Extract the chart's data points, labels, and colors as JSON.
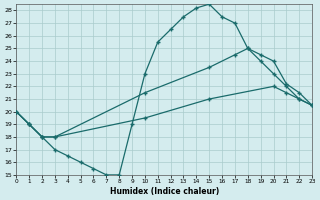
{
  "bg_color": "#d4ecee",
  "grid_color": "#aacccc",
  "line_color": "#1a6b6b",
  "xlim": [
    0,
    23
  ],
  "ylim": [
    15,
    28.5
  ],
  "xlabel": "Humidex (Indice chaleur)",
  "ytick_vals": [
    15,
    16,
    17,
    18,
    19,
    20,
    21,
    22,
    23,
    24,
    25,
    26,
    27,
    28
  ],
  "xtick_vals": [
    0,
    1,
    2,
    3,
    4,
    5,
    6,
    7,
    8,
    9,
    10,
    11,
    12,
    13,
    14,
    15,
    16,
    17,
    18,
    19,
    20,
    21,
    22,
    23
  ],
  "curve1_x": [
    0,
    1,
    2,
    3,
    4,
    5,
    6,
    7,
    8,
    9,
    10,
    11,
    12,
    13,
    14,
    15,
    16,
    17,
    18,
    19,
    20,
    21,
    22,
    23
  ],
  "curve1_y": [
    20.0,
    19.0,
    18.0,
    17.0,
    16.5,
    16.0,
    15.5,
    15.0,
    15.0,
    19.0,
    23.0,
    25.5,
    26.5,
    27.5,
    28.2,
    28.5,
    27.5,
    27.0,
    25.0,
    24.0,
    23.0,
    22.0,
    21.0,
    20.5
  ],
  "curve2_x": [
    0,
    1,
    2,
    3,
    10,
    15,
    17,
    18,
    19,
    20,
    21,
    22,
    23
  ],
  "curve2_y": [
    20.0,
    19.0,
    18.0,
    18.0,
    21.5,
    23.5,
    24.5,
    25.0,
    24.5,
    24.0,
    22.2,
    21.5,
    20.5
  ],
  "curve3_x": [
    0,
    1,
    2,
    3,
    10,
    15,
    20,
    21,
    22,
    23
  ],
  "curve3_y": [
    20.0,
    19.0,
    18.0,
    18.0,
    19.5,
    21.0,
    22.0,
    21.5,
    21.0,
    20.5
  ]
}
